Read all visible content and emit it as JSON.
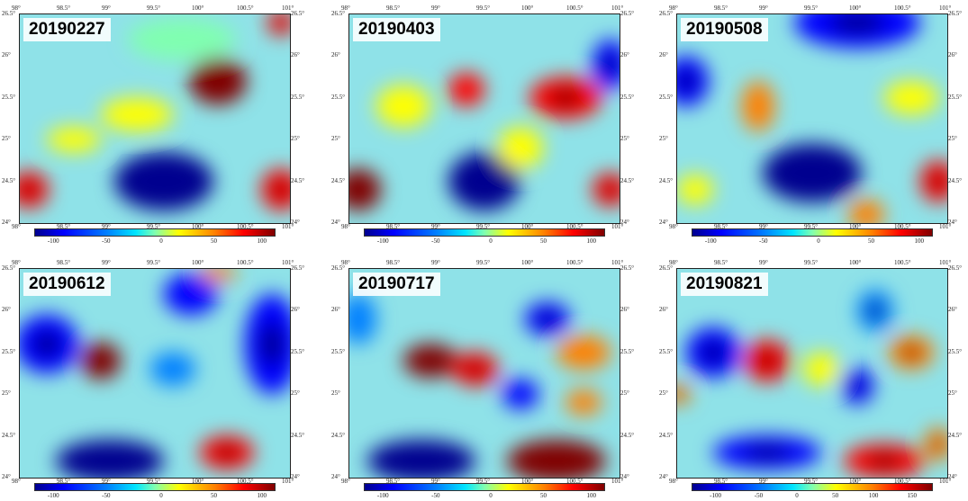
{
  "axes": {
    "x_ticks": [
      "98°",
      "98.5°",
      "99°",
      "99.5°",
      "100°",
      "100.5°",
      "101°"
    ],
    "y_ticks": [
      "26.5°",
      "26°",
      "25.5°",
      "25°",
      "24.5°",
      "24°"
    ]
  },
  "colormap": [
    "#00008f",
    "#0000ff",
    "#0080ff",
    "#00e5ff",
    "#80ffb0",
    "#ffff00",
    "#ff8000",
    "#ff0000",
    "#800000"
  ],
  "panels": [
    {
      "date": "20190227",
      "cbar_ticks": [
        "-100",
        "-50",
        "0",
        "50",
        "100"
      ],
      "blobs": [
        {
          "lon": 100.2,
          "lat": 25.7,
          "rx": 0.32,
          "ry": 0.28,
          "v": 100
        },
        {
          "lon": 99.6,
          "lat": 24.5,
          "rx": 0.55,
          "ry": 0.35,
          "v": -100
        },
        {
          "lon": 98.1,
          "lat": 24.4,
          "rx": 0.22,
          "ry": 0.22,
          "v": 90
        },
        {
          "lon": 100.9,
          "lat": 24.4,
          "rx": 0.22,
          "ry": 0.25,
          "v": 95
        },
        {
          "lon": 100.9,
          "lat": 26.4,
          "rx": 0.15,
          "ry": 0.15,
          "v": 90
        },
        {
          "lon": 98.6,
          "lat": 25.0,
          "rx": 0.3,
          "ry": 0.15,
          "v": 40
        },
        {
          "lon": 99.3,
          "lat": 25.3,
          "rx": 0.4,
          "ry": 0.2,
          "v": 25
        },
        {
          "lon": 99.8,
          "lat": 26.2,
          "rx": 0.6,
          "ry": 0.25,
          "v": -10
        }
      ]
    },
    {
      "date": "20190403",
      "cbar_ticks": [
        "-100",
        "-50",
        "0",
        "50",
        "100"
      ],
      "blobs": [
        {
          "lon": 100.4,
          "lat": 25.5,
          "rx": 0.4,
          "ry": 0.25,
          "v": 95
        },
        {
          "lon": 99.5,
          "lat": 24.5,
          "rx": 0.4,
          "ry": 0.35,
          "v": -100
        },
        {
          "lon": 98.1,
          "lat": 24.4,
          "rx": 0.25,
          "ry": 0.25,
          "v": 100
        },
        {
          "lon": 99.3,
          "lat": 25.6,
          "rx": 0.2,
          "ry": 0.2,
          "v": 70
        },
        {
          "lon": 100.9,
          "lat": 25.9,
          "rx": 0.2,
          "ry": 0.3,
          "v": -80
        },
        {
          "lon": 100.9,
          "lat": 24.4,
          "rx": 0.2,
          "ry": 0.2,
          "v": 90
        },
        {
          "lon": 98.6,
          "lat": 25.4,
          "rx": 0.3,
          "ry": 0.25,
          "v": 35
        },
        {
          "lon": 99.9,
          "lat": 24.9,
          "rx": 0.25,
          "ry": 0.25,
          "v": 30
        }
      ]
    },
    {
      "date": "20190508",
      "cbar_ticks": [
        "-100",
        "-50",
        "0",
        "50",
        "100"
      ],
      "blobs": [
        {
          "lon": 99.5,
          "lat": 24.6,
          "rx": 0.55,
          "ry": 0.35,
          "v": -100
        },
        {
          "lon": 100.0,
          "lat": 26.4,
          "rx": 0.7,
          "ry": 0.3,
          "v": -90
        },
        {
          "lon": 98.1,
          "lat": 25.7,
          "rx": 0.25,
          "ry": 0.3,
          "v": -80
        },
        {
          "lon": 98.9,
          "lat": 25.4,
          "rx": 0.18,
          "ry": 0.3,
          "v": 60
        },
        {
          "lon": 100.9,
          "lat": 24.5,
          "rx": 0.2,
          "ry": 0.25,
          "v": 95
        },
        {
          "lon": 98.2,
          "lat": 24.4,
          "rx": 0.2,
          "ry": 0.18,
          "v": 40
        },
        {
          "lon": 100.6,
          "lat": 25.5,
          "rx": 0.3,
          "ry": 0.2,
          "v": 40
        },
        {
          "lon": 100.1,
          "lat": 24.1,
          "rx": 0.2,
          "ry": 0.18,
          "v": 45
        }
      ]
    },
    {
      "date": "20190612",
      "cbar_ticks": [
        "-100",
        "-50",
        "0",
        "50",
        "100"
      ],
      "blobs": [
        {
          "lon": 98.9,
          "lat": 25.4,
          "rx": 0.22,
          "ry": 0.22,
          "v": 100
        },
        {
          "lon": 100.3,
          "lat": 24.3,
          "rx": 0.3,
          "ry": 0.2,
          "v": 95
        },
        {
          "lon": 98.3,
          "lat": 25.6,
          "rx": 0.35,
          "ry": 0.35,
          "v": -90
        },
        {
          "lon": 99.0,
          "lat": 24.2,
          "rx": 0.6,
          "ry": 0.25,
          "v": -100
        },
        {
          "lon": 100.8,
          "lat": 25.6,
          "rx": 0.3,
          "ry": 0.6,
          "v": -80
        },
        {
          "lon": 99.9,
          "lat": 26.2,
          "rx": 0.3,
          "ry": 0.25,
          "v": -70
        },
        {
          "lon": 99.7,
          "lat": 25.3,
          "rx": 0.25,
          "ry": 0.2,
          "v": -60
        },
        {
          "lon": 100.2,
          "lat": 26.45,
          "rx": 0.2,
          "ry": 0.1,
          "v": 50
        }
      ]
    },
    {
      "date": "20190717",
      "cbar_ticks": [
        "-100",
        "-50",
        "0",
        "50",
        "100"
      ],
      "blobs": [
        {
          "lon": 98.9,
          "lat": 25.4,
          "rx": 0.3,
          "ry": 0.2,
          "v": 100
        },
        {
          "lon": 99.4,
          "lat": 25.3,
          "rx": 0.25,
          "ry": 0.2,
          "v": 85
        },
        {
          "lon": 100.3,
          "lat": 24.2,
          "rx": 0.55,
          "ry": 0.25,
          "v": 100
        },
        {
          "lon": 98.8,
          "lat": 24.2,
          "rx": 0.6,
          "ry": 0.25,
          "v": -100
        },
        {
          "lon": 100.6,
          "lat": 25.5,
          "rx": 0.3,
          "ry": 0.2,
          "v": 55
        },
        {
          "lon": 100.6,
          "lat": 24.9,
          "rx": 0.2,
          "ry": 0.15,
          "v": 60
        },
        {
          "lon": 100.2,
          "lat": 25.9,
          "rx": 0.25,
          "ry": 0.2,
          "v": -80
        },
        {
          "lon": 99.9,
          "lat": 25.0,
          "rx": 0.2,
          "ry": 0.18,
          "v": -70
        },
        {
          "lon": 98.1,
          "lat": 25.9,
          "rx": 0.2,
          "ry": 0.3,
          "v": -60
        }
      ]
    },
    {
      "date": "20190821",
      "cbar_ticks": [
        "-100",
        "-50",
        "0",
        "50",
        "100",
        "150"
      ],
      "blobs": [
        {
          "lon": 99.0,
          "lat": 25.4,
          "rx": 0.25,
          "ry": 0.25,
          "v": 150
        },
        {
          "lon": 100.3,
          "lat": 24.2,
          "rx": 0.45,
          "ry": 0.2,
          "v": 150
        },
        {
          "lon": 98.4,
          "lat": 25.5,
          "rx": 0.3,
          "ry": 0.3,
          "v": -120
        },
        {
          "lon": 99.0,
          "lat": 24.3,
          "rx": 0.6,
          "ry": 0.2,
          "v": -120
        },
        {
          "lon": 100.0,
          "lat": 25.1,
          "rx": 0.18,
          "ry": 0.22,
          "v": -120
        },
        {
          "lon": 100.2,
          "lat": 26.0,
          "rx": 0.2,
          "ry": 0.25,
          "v": -100
        },
        {
          "lon": 100.6,
          "lat": 25.5,
          "rx": 0.25,
          "ry": 0.2,
          "v": 80
        },
        {
          "lon": 98.0,
          "lat": 25.0,
          "rx": 0.15,
          "ry": 0.12,
          "v": 90
        },
        {
          "lon": 99.6,
          "lat": 25.3,
          "rx": 0.2,
          "ry": 0.2,
          "v": 60
        },
        {
          "lon": 100.9,
          "lat": 24.4,
          "rx": 0.15,
          "ry": 0.2,
          "v": 80
        }
      ]
    }
  ]
}
